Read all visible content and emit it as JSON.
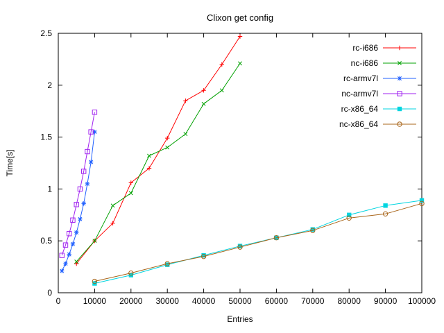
{
  "chart_data": {
    "type": "line",
    "title": "Clixon get config",
    "xlabel": "Entries",
    "ylabel": "Time[s]",
    "xlim": [
      0,
      100000
    ],
    "ylim": [
      0,
      2.5
    ],
    "xticks": [
      0,
      10000,
      20000,
      30000,
      40000,
      50000,
      60000,
      70000,
      80000,
      90000,
      100000
    ],
    "xtick_labels": [
      "0",
      "10000",
      "20000",
      "30000",
      "40000",
      "50000",
      "60000",
      "70000",
      "80000",
      "90000",
      "100000"
    ],
    "yticks": [
      0,
      0.5,
      1,
      1.5,
      2,
      2.5
    ],
    "ytick_labels": [
      "0",
      "0.5",
      "1",
      "1.5",
      "2",
      "2.5"
    ],
    "grid": false,
    "legend_position": "top-right",
    "colors": {
      "background": "#ffffff",
      "border": "#000000",
      "text": "#000000"
    },
    "series": [
      {
        "name": "rc-i686",
        "color": "#ff0000",
        "marker": "plus",
        "x": [
          5000,
          10000,
          15000,
          20000,
          25000,
          30000,
          35000,
          40000,
          45000,
          50000
        ],
        "y": [
          0.28,
          0.5,
          0.67,
          1.06,
          1.2,
          1.49,
          1.85,
          1.95,
          2.2,
          2.47
        ]
      },
      {
        "name": "nc-i686",
        "color": "#00a000",
        "marker": "cross",
        "x": [
          5000,
          10000,
          15000,
          20000,
          25000,
          30000,
          35000,
          40000,
          45000,
          50000
        ],
        "y": [
          0.3,
          0.5,
          0.84,
          0.96,
          1.32,
          1.4,
          1.53,
          1.82,
          1.95,
          2.21
        ]
      },
      {
        "name": "rc-armv7l",
        "color": "#2060ff",
        "marker": "asterisk",
        "x": [
          1000,
          2000,
          3000,
          4000,
          5000,
          6000,
          7000,
          8000,
          9000,
          10000
        ],
        "y": [
          0.21,
          0.28,
          0.37,
          0.47,
          0.58,
          0.71,
          0.86,
          1.05,
          1.26,
          1.55
        ]
      },
      {
        "name": "nc-armv7l",
        "color": "#a020f0",
        "marker": "square-open",
        "x": [
          1000,
          2000,
          3000,
          4000,
          5000,
          6000,
          7000,
          8000,
          9000,
          10000
        ],
        "y": [
          0.36,
          0.46,
          0.57,
          0.7,
          0.85,
          1.0,
          1.17,
          1.36,
          1.55,
          1.74
        ]
      },
      {
        "name": "rc-x86_64",
        "color": "#00d5e0",
        "marker": "square-filled",
        "x": [
          10000,
          20000,
          30000,
          40000,
          50000,
          60000,
          70000,
          80000,
          90000,
          100000
        ],
        "y": [
          0.09,
          0.17,
          0.27,
          0.36,
          0.45,
          0.53,
          0.61,
          0.75,
          0.84,
          0.89
        ]
      },
      {
        "name": "nc-x86_64",
        "color": "#a86418",
        "marker": "circle-open",
        "x": [
          10000,
          20000,
          30000,
          40000,
          50000,
          60000,
          70000,
          80000,
          90000,
          100000
        ],
        "y": [
          0.11,
          0.19,
          0.28,
          0.35,
          0.44,
          0.53,
          0.6,
          0.72,
          0.76,
          0.86
        ]
      }
    ]
  }
}
